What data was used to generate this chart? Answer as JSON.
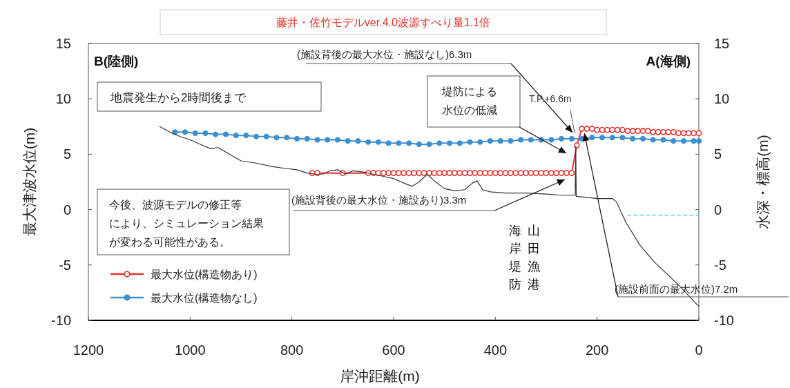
{
  "chart_data": {
    "type": "line",
    "title": "藤井・佐竹モデルver.4.0波源すべり量1.1倍",
    "xlabel": "岸沖距離(m)",
    "ylabel": "最大津波水位(m)",
    "y2label": "水深・標高(m)",
    "xlim": [
      1200,
      0
    ],
    "xticks": [
      1200,
      1000,
      800,
      600,
      400,
      200,
      0
    ],
    "ylim": [
      -10,
      15
    ],
    "yticks": [
      -10,
      -5,
      0,
      5,
      10,
      15
    ],
    "y2lim": [
      -10,
      15
    ],
    "y2ticks": [
      -10,
      -5,
      0,
      5,
      10,
      15
    ],
    "grid": false,
    "legend": "bottom left",
    "marker": "circle",
    "line_style": "solid",
    "series": [
      {
        "name": "最大水位(構造物あり)",
        "color": "#e8302a",
        "x": [
          760,
          750,
          700,
          650,
          640,
          630,
          620,
          610,
          600,
          590,
          580,
          570,
          560,
          550,
          540,
          530,
          520,
          510,
          500,
          490,
          480,
          470,
          460,
          450,
          440,
          430,
          420,
          410,
          400,
          390,
          380,
          370,
          360,
          350,
          340,
          330,
          320,
          310,
          300,
          290,
          280,
          270,
          260,
          250,
          240,
          230,
          220,
          210,
          200,
          190,
          180,
          170,
          160,
          150,
          140,
          130,
          120,
          110,
          100,
          90,
          80,
          70,
          60,
          50,
          40,
          30,
          20,
          10,
          0
        ],
        "values": [
          3.3,
          3.3,
          3.3,
          3.3,
          3.3,
          3.3,
          3.3,
          3.3,
          3.3,
          3.3,
          3.3,
          3.3,
          3.3,
          3.3,
          3.3,
          3.3,
          3.3,
          3.3,
          3.3,
          3.3,
          3.3,
          3.3,
          3.3,
          3.3,
          3.3,
          3.3,
          3.3,
          3.3,
          3.3,
          3.3,
          3.3,
          3.3,
          3.3,
          3.3,
          3.3,
          3.3,
          3.3,
          3.3,
          3.3,
          3.3,
          3.3,
          3.3,
          3.3,
          3.3,
          5.8,
          7.3,
          7.3,
          7.3,
          7.2,
          7.2,
          7.2,
          7.2,
          7.2,
          7.2,
          7.1,
          7.1,
          7.1,
          7.1,
          7.1,
          7.0,
          7.0,
          7.0,
          7.0,
          7.0,
          6.9,
          6.9,
          6.9,
          6.9,
          6.9
        ]
      },
      {
        "name": "最大水位(構造物なし)",
        "color": "#3c8fd0",
        "x": [
          1030,
          1010,
          990,
          970,
          950,
          930,
          910,
          890,
          870,
          850,
          830,
          810,
          790,
          770,
          750,
          730,
          710,
          690,
          670,
          650,
          630,
          610,
          590,
          570,
          550,
          530,
          510,
          490,
          470,
          450,
          430,
          410,
          390,
          370,
          350,
          330,
          310,
          290,
          270,
          250,
          230,
          210,
          190,
          170,
          150,
          130,
          110,
          90,
          70,
          50,
          30,
          10,
          0
        ],
        "values": [
          7.0,
          7.0,
          6.9,
          6.9,
          6.8,
          6.8,
          6.7,
          6.7,
          6.6,
          6.6,
          6.5,
          6.5,
          6.4,
          6.4,
          6.3,
          6.3,
          6.3,
          6.2,
          6.2,
          6.1,
          6.1,
          6.0,
          6.0,
          6.0,
          5.9,
          5.9,
          6.0,
          6.0,
          6.0,
          6.1,
          6.1,
          6.2,
          6.2,
          6.2,
          6.3,
          6.3,
          6.3,
          6.3,
          6.4,
          6.4,
          6.4,
          6.5,
          6.5,
          6.5,
          6.5,
          6.4,
          6.4,
          6.3,
          6.3,
          6.2,
          6.2,
          6.2,
          6.2
        ]
      },
      {
        "color": "#333333",
        "marker": "none",
        "x": [
          1060,
          1040,
          1020,
          1000,
          980,
          960,
          945,
          930,
          900,
          870,
          840,
          810,
          790,
          770,
          755,
          740,
          725,
          710,
          695,
          680,
          660,
          640,
          620,
          600,
          580,
          564,
          550,
          534,
          520,
          500,
          480,
          460,
          445,
          436,
          425,
          410,
          380,
          340,
          300,
          270,
          250,
          243,
          242,
          241,
          220,
          200,
          170,
          162,
          144,
          116,
          86,
          40,
          3,
          0
        ],
        "values": [
          7.5,
          7.0,
          6.6,
          6.3,
          5.9,
          5.5,
          5.6,
          5.2,
          4.4,
          4.2,
          3.9,
          3.7,
          3.6,
          3.3,
          3.2,
          3.2,
          3.5,
          3.6,
          3.2,
          3.5,
          3.4,
          3.2,
          3.0,
          2.8,
          2.4,
          2.1,
          2.5,
          3.2,
          2.6,
          1.9,
          1.7,
          1.8,
          2.4,
          2.6,
          1.8,
          1.6,
          1.5,
          1.5,
          1.4,
          1.3,
          1.3,
          1.3,
          5.7,
          1.2,
          1.1,
          1.0,
          1.0,
          0.7,
          -1.1,
          -3.2,
          -4.8,
          -6.8,
          -8.6,
          -8.7
        ]
      },
      {
        "color": "#33c8e8",
        "marker": "none",
        "line_style": "dashed",
        "x": [
          140,
          0
        ],
        "values": [
          -0.5,
          -0.5
        ]
      }
    ],
    "annotations": [
      "B(陸側)",
      "A(海側)",
      "地震発生から2時間後まで",
      "今後、波源モデルの修正等",
      "により、シミュレーション結果",
      "が変わる可能性がある。",
      "(施設背後の最大水位・施設なし)6.3m",
      "堤防による",
      "水位の低減",
      "T.P.+6.6m",
      "(施設背後の最大水位・施設あり)3.3m",
      {
        "text": "(施設前面の最大水位)7.2m",
        "x": 225,
        "y": 7.2
      },
      "海岸堤防",
      "山田漁港"
    ]
  }
}
